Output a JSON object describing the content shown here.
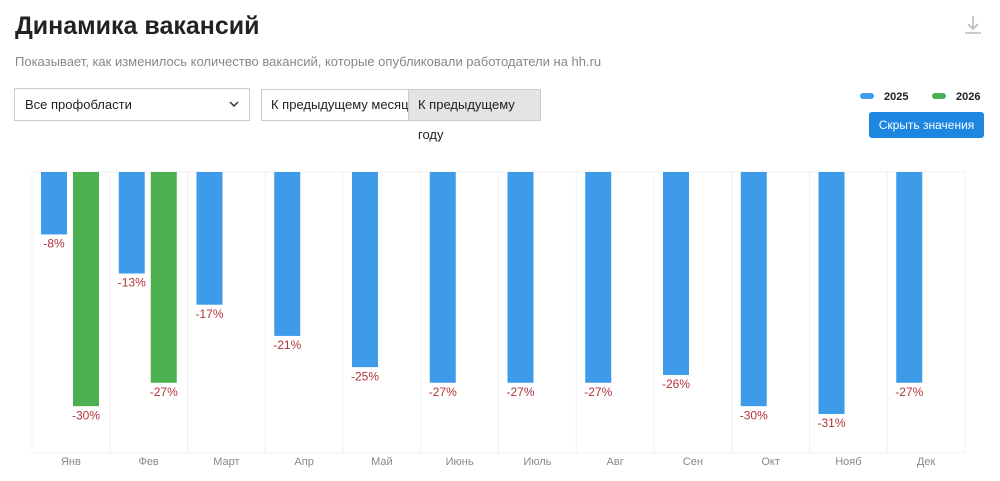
{
  "chart_data": {
    "type": "bar",
    "title": "Динамика вакансий",
    "subtitle": "Показывает, как изменилось количество вакансий, которые опубликовали работодатели на hh.ru",
    "categories": [
      "Янв",
      "Фев",
      "Март",
      "Апр",
      "Май",
      "Июнь",
      "Июль",
      "Авг",
      "Сен",
      "Окт",
      "Нояб",
      "Дек"
    ],
    "series": [
      {
        "name": "2025",
        "color": "#3d9be9",
        "values": [
          -8,
          -13,
          -17,
          -21,
          -25,
          -27,
          -27,
          -27,
          -26,
          -30,
          -31,
          -27
        ],
        "value_labels": [
          "-8%",
          "-13%",
          "-17%",
          "-21%",
          "-25%",
          "-27%",
          "-27%",
          "-27%",
          "-26%",
          "-30%",
          "-31%",
          "-27%"
        ]
      },
      {
        "name": "2026",
        "color": "#4caf50",
        "values": [
          -30,
          -27,
          null,
          null,
          null,
          null,
          null,
          null,
          null,
          null,
          null,
          null
        ],
        "value_labels": [
          "-30%",
          "-27%",
          null,
          null,
          null,
          null,
          null,
          null,
          null,
          null,
          null,
          null
        ]
      }
    ],
    "ylim": [
      -36,
      0
    ],
    "value_label_color": "#b0343a"
  },
  "controls": {
    "dropdown": "Все профобласти",
    "toggle": [
      "К предыдущему месяцу",
      "К предыдущему году"
    ],
    "active_toggle": 1,
    "hide_button": "Скрыть значения"
  }
}
